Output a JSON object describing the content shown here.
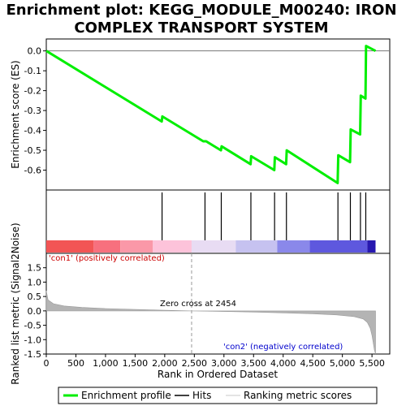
{
  "chart_data": {
    "type": "line",
    "title_lines": [
      "Enrichment plot: KEGG_MODULE_M00240: IRON",
      "COMPLEX TRANSPORT SYSTEM"
    ],
    "xlabel": "Rank in Ordered Dataset",
    "ylabel_top": "Enrichment score (ES)",
    "ylabel_bottom": "Ranked list metric (Signal2Noise)",
    "xlim": [
      0,
      5800
    ],
    "x_ticks": [
      0,
      500,
      1000,
      1500,
      2000,
      2500,
      3000,
      3500,
      4000,
      4500,
      5000,
      5500
    ],
    "x_tick_labels": [
      "0",
      "500",
      "1,000",
      "1,500",
      "2,000",
      "2,500",
      "3,000",
      "3,500",
      "4,000",
      "4,500",
      "5,000",
      "5,500"
    ],
    "es_ylim": [
      -0.7,
      0.06
    ],
    "es_ticks": [
      0.0,
      -0.1,
      -0.2,
      -0.3,
      -0.4,
      -0.5,
      -0.6
    ],
    "es_tick_labels": [
      "0.0",
      "-0.1",
      "-0.2",
      "-0.3",
      "-0.4",
      "-0.5",
      "-0.6"
    ],
    "metric_ylim": [
      -1.5,
      2.0
    ],
    "metric_ticks": [
      1.5,
      1.0,
      0.5,
      0.0,
      -0.5,
      -1.0,
      -1.5
    ],
    "metric_tick_labels": [
      "1.5",
      "1.0",
      "0.5",
      "0.0",
      "-0.5",
      "-1.0",
      "-1.5"
    ],
    "enrichment_profile": {
      "x": [
        0,
        1950,
        1960,
        2650,
        2700,
        2950,
        2960,
        3450,
        3460,
        3850,
        3860,
        4050,
        4060,
        4920,
        4930,
        5130,
        5140,
        5300,
        5310,
        5390,
        5400,
        5560
      ],
      "y": [
        0.0,
        -0.355,
        -0.33,
        -0.455,
        -0.455,
        -0.5,
        -0.48,
        -0.57,
        -0.53,
        -0.6,
        -0.535,
        -0.57,
        -0.5,
        -0.665,
        -0.525,
        -0.56,
        -0.395,
        -0.42,
        -0.225,
        -0.24,
        0.025,
        0.0
      ]
    },
    "hits": [
      1955,
      2680,
      2955,
      3455,
      3855,
      4055,
      4925,
      5135,
      5305,
      5395
    ],
    "metric_profile": {
      "x": [
        0,
        30,
        120,
        300,
        600,
        1000,
        1500,
        2000,
        2454,
        3000,
        3500,
        4000,
        4500,
        4900,
        5200,
        5350,
        5420,
        5470,
        5500,
        5520,
        5540,
        5560
      ],
      "y": [
        0.7,
        0.38,
        0.25,
        0.17,
        0.12,
        0.08,
        0.05,
        0.02,
        0.0,
        -0.02,
        -0.04,
        -0.07,
        -0.1,
        -0.14,
        -0.2,
        -0.28,
        -0.4,
        -0.6,
        -0.85,
        -1.1,
        -1.35,
        -1.5
      ]
    },
    "zero_cross": 2454,
    "zero_cross_label": "Zero cross at 2454",
    "pos_label": "'con1' (positively correlated)",
    "neg_label": "'con2' (negatively correlated)",
    "heat_bands": [
      {
        "start": 0,
        "end": 800,
        "color": "#f25555"
      },
      {
        "start": 800,
        "end": 1250,
        "color": "#f7707e"
      },
      {
        "start": 1250,
        "end": 1800,
        "color": "#fa98a8"
      },
      {
        "start": 1800,
        "end": 2454,
        "color": "#fdc3da"
      },
      {
        "start": 2454,
        "end": 3200,
        "color": "#e8dcf3"
      },
      {
        "start": 3200,
        "end": 3900,
        "color": "#c6c2f0"
      },
      {
        "start": 3900,
        "end": 4450,
        "color": "#8a88ea"
      },
      {
        "start": 4450,
        "end": 5420,
        "color": "#5e58de"
      },
      {
        "start": 5420,
        "end": 5560,
        "color": "#2718b0"
      }
    ],
    "legend": [
      "Enrichment profile",
      "Hits",
      "Ranking metric scores"
    ],
    "colors": {
      "profile": "#00ee00",
      "hits": "#000000",
      "metric_fill": "#b4b4b4",
      "metric_legend": "#c8c8c8",
      "pos_label": "#cc0000",
      "neg_label": "#0000cc",
      "zero_line": "#999999"
    }
  }
}
